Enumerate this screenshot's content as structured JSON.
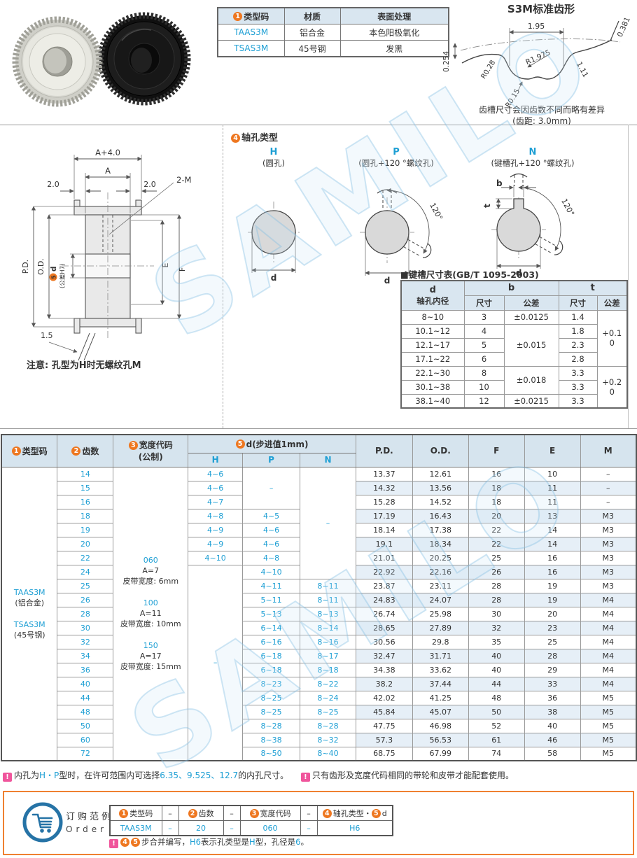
{
  "watermark": "SAMILO",
  "type_table": {
    "h_type": [
      {
        "n": "1"
      },
      {
        "t": "类型码"
      }
    ],
    "h_mat": "材质",
    "h_surf": "表面处理",
    "rows": [
      [
        "TAAS3M",
        "铝合金",
        "本色阳极氧化"
      ],
      [
        "TSAS3M",
        "45号钢",
        "发黑"
      ]
    ]
  },
  "tooth_profile": {
    "title": "S3M标准齿形",
    "d_195": "1.95",
    "d_0381": "0.381",
    "d_0254": "0.254",
    "r_028": "R0.28",
    "r_1975": "R1.975",
    "r_015": "R0.15",
    "d_111": "1.11",
    "caption1": "齿槽尺寸会因齿数不同而略有差异",
    "caption2": "(齿距: 3.0mm)"
  },
  "drawing": {
    "dim_a4": "A+4.0",
    "dim_a": "A",
    "dim_2l": "2.0",
    "dim_2r": "2.0",
    "dim_2m": "2-M",
    "dim_pd": "P.D.",
    "dim_od": "O.D.",
    "dim_d_num": "5",
    "dim_d": "d",
    "dim_d_tol": "(公差H7)",
    "dim_e": "E",
    "dim_f": "F",
    "dim_15": "1.5",
    "note": "注意: 孔型为H时无螺纹孔M"
  },
  "hole_types": {
    "heading": [
      {
        "n": "4"
      },
      {
        "t": "轴孔类型"
      }
    ],
    "h_code": "H",
    "h_desc": "(圆孔)",
    "p_code": "P",
    "p_desc": "(圆孔+120 °螺纹孔)",
    "n_code": "N",
    "n_desc": "(键槽孔+120 °螺纹孔)",
    "label_d": "d",
    "label_b": "b",
    "label_t": "t",
    "label_120": "120°"
  },
  "keyway": {
    "title": "■键槽尺寸表(GB/T 1095-2003)",
    "h_d": "d",
    "h_d2": "轴孔内径",
    "h_b": "b",
    "h_t": "t",
    "h_size": "尺寸",
    "h_tol": "公差",
    "rows": [
      [
        "8~10",
        "3",
        "±0.0125",
        "1.4",
        {
          "t": "+0.1\n0",
          "rs": 4
        }
      ],
      [
        "10.1~12",
        "4",
        {
          "t": "±0.015",
          "rs": 3
        },
        "1.8",
        null
      ],
      [
        "12.1~17",
        "5",
        null,
        "2.3",
        null
      ],
      [
        "17.1~22",
        "6",
        null,
        "2.8",
        null
      ],
      [
        "22.1~30",
        "8",
        {
          "t": "±0.018",
          "rs": 2
        },
        "3.3",
        {
          "t": "+0.2\n0",
          "rs": 3
        }
      ],
      [
        "30.1~38",
        "10",
        null,
        "3.3",
        null
      ],
      [
        "38.1~40",
        "12",
        "±0.0215",
        "3.3",
        null
      ]
    ]
  },
  "main_table": {
    "header": {
      "type": [
        {
          "n": "1"
        },
        {
          "t": "类型码"
        }
      ],
      "teeth": [
        {
          "n": "2"
        },
        {
          "t": "齿数"
        }
      ],
      "width": [
        {
          "n": "3"
        },
        {
          "t": "宽度代码"
        },
        {
          "t": "\n(公制)"
        }
      ],
      "d": [
        {
          "n": "5"
        },
        {
          "t": "d(步进值1mm)"
        }
      ],
      "h": "H",
      "p": "P",
      "n": "N",
      "right": [
        "P.D.",
        "O.D.",
        "F",
        "E",
        "M"
      ]
    },
    "type_cell": [
      {
        "t": "TAAS3M",
        "c": "b"
      },
      {
        "t": "(铝合金)"
      },
      {
        "g": 1
      },
      {
        "t": "TSAS3M",
        "c": "b"
      },
      {
        "t": "(45号钢)"
      }
    ],
    "width_cell": [
      {
        "t": "060",
        "c": "b"
      },
      {
        "t": "A=7"
      },
      {
        "t": "皮带宽度: 6mm"
      },
      {
        "g": 1
      },
      {
        "t": "100",
        "c": "b"
      },
      {
        "t": "A=11"
      },
      {
        "t": "皮带宽度: 10mm"
      },
      {
        "g": 1
      },
      {
        "t": "150",
        "c": "b"
      },
      {
        "t": "A=17"
      },
      {
        "t": "皮带宽度: 15mm"
      }
    ],
    "rows": [
      [
        "14",
        "4~6",
        {
          "t": "–",
          "rs": 3
        },
        {
          "t": "–",
          "rs": 8
        },
        "13.37",
        "12.61",
        "16",
        "10",
        "–"
      ],
      [
        "15",
        "4~6",
        null,
        null,
        "14.32",
        "13.56",
        "18",
        "11",
        "–"
      ],
      [
        "16",
        "4~7",
        null,
        null,
        "15.28",
        "14.52",
        "18",
        "11",
        "–"
      ],
      [
        "18",
        "4~8",
        "4~5",
        null,
        "17.19",
        "16.43",
        "20",
        "13",
        "M3"
      ],
      [
        "19",
        "4~9",
        "4~6",
        null,
        "18.14",
        "17.38",
        "22",
        "14",
        "M3"
      ],
      [
        "20",
        "4~9",
        "4~6",
        null,
        "19.1",
        "18.34",
        "22",
        "14",
        "M3"
      ],
      [
        "22",
        "4~10",
        "4~8",
        null,
        "21.01",
        "20.25",
        "25",
        "16",
        "M3"
      ],
      [
        "24",
        {
          "t": "–",
          "rs": 14
        },
        "4~10",
        null,
        "22.92",
        "22.16",
        "26",
        "16",
        "M3"
      ],
      [
        "25",
        null,
        "4~11",
        "8~11",
        "23.87",
        "23.11",
        "28",
        "19",
        "M3"
      ],
      [
        "26",
        null,
        "5~11",
        "8~11",
        "24.83",
        "24.07",
        "28",
        "19",
        "M4"
      ],
      [
        "28",
        null,
        "5~13",
        "8~13",
        "26.74",
        "25.98",
        "30",
        "20",
        "M4"
      ],
      [
        "30",
        null,
        "6~14",
        "8~14",
        "28.65",
        "27.89",
        "32",
        "23",
        "M4"
      ],
      [
        "32",
        null,
        "6~16",
        "8~16",
        "30.56",
        "29.8",
        "35",
        "25",
        "M4"
      ],
      [
        "34",
        null,
        "6~18",
        "8~17",
        "32.47",
        "31.71",
        "40",
        "28",
        "M4"
      ],
      [
        "36",
        null,
        "6~18",
        "8~18",
        "34.38",
        "33.62",
        "40",
        "29",
        "M4"
      ],
      [
        "40",
        null,
        "8~23",
        "8~22",
        "38.2",
        "37.44",
        "44",
        "33",
        "M4"
      ],
      [
        "44",
        null,
        "8~25",
        "8~24",
        "42.02",
        "41.25",
        "48",
        "36",
        "M5"
      ],
      [
        "48",
        null,
        "8~25",
        "8~25",
        "45.84",
        "45.07",
        "50",
        "38",
        "M5"
      ],
      [
        "50",
        null,
        "8~28",
        "8~28",
        "47.75",
        "46.98",
        "52",
        "40",
        "M5"
      ],
      [
        "60",
        null,
        "8~38",
        "8~32",
        "57.3",
        "56.53",
        "61",
        "46",
        "M5"
      ],
      [
        "72",
        null,
        "8~50",
        "8~40",
        "68.75",
        "67.99",
        "74",
        "58",
        "M5"
      ]
    ]
  },
  "notes": {
    "note1": [
      {
        "w": 1
      },
      {
        "t": "内孔为"
      },
      {
        "t": "H・P",
        "c": "b"
      },
      {
        "t": "型时，在许可范围内可选择"
      },
      {
        "t": "6.35、9.525、12.7",
        "c": "b"
      },
      {
        "t": "的内孔尺寸。"
      }
    ],
    "note2": [
      {
        "w": 1
      },
      {
        "t": "只有齿形及宽度代码相同的带轮和皮带才能配套使用。"
      }
    ]
  },
  "order": {
    "label_cn": "订购范例",
    "label_en": "Order",
    "header": [
      [
        {
          "n": "1"
        },
        {
          "t": "类型码"
        }
      ],
      [
        {
          "t": "–"
        }
      ],
      [
        {
          "n": "2"
        },
        {
          "t": "齿数"
        }
      ],
      [
        {
          "t": "–"
        }
      ],
      [
        {
          "n": "3"
        },
        {
          "t": "宽度代码"
        }
      ],
      [
        {
          "t": "–"
        }
      ],
      [
        {
          "n": "4"
        },
        {
          "t": "轴孔类型・"
        },
        {
          "n": "5"
        },
        {
          "t": "d"
        }
      ]
    ],
    "values": [
      [
        {
          "t": "TAAS3M",
          "c": "b"
        }
      ],
      [
        {
          "t": "–",
          "c": "b"
        }
      ],
      [
        {
          "t": "20",
          "c": "b"
        }
      ],
      [
        {
          "t": "–",
          "c": "b"
        }
      ],
      [
        {
          "t": "060",
          "c": "b"
        }
      ],
      [
        {
          "t": "–",
          "c": "b"
        }
      ],
      [
        {
          "t": "H6",
          "c": "b"
        }
      ]
    ],
    "note": [
      {
        "w": 1
      },
      {
        "n": "4"
      },
      {
        "n": "5"
      },
      {
        "t": "步合并编写，"
      },
      {
        "t": "H6",
        "c": "b"
      },
      {
        "t": "表示孔类型是"
      },
      {
        "t": "H",
        "c": "b"
      },
      {
        "t": "型，孔径是"
      },
      {
        "t": "6",
        "c": "b"
      },
      {
        "t": "。"
      }
    ]
  }
}
